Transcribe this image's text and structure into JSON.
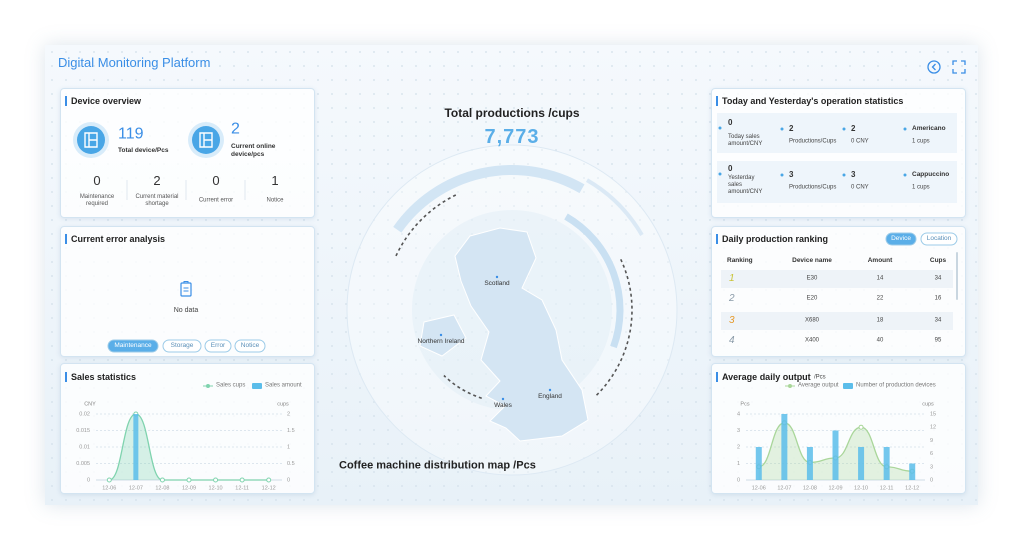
{
  "header": {
    "title": "Digital Monitoring Platform"
  },
  "device_overview": {
    "title": "Device overview",
    "total": {
      "value": 119,
      "label": "Total device/Pcs"
    },
    "online": {
      "value": 2,
      "label": "Current online device/pcs"
    },
    "stats": [
      {
        "value": 0,
        "label": "Maintenance required"
      },
      {
        "value": 2,
        "label": "Current material shortage"
      },
      {
        "value": 0,
        "label": "Current error"
      },
      {
        "value": 1,
        "label": "Notice"
      }
    ]
  },
  "error_analysis": {
    "title": "Current error analysis",
    "empty": "No data",
    "tabs": [
      "Maintenance",
      "Storage",
      "Error",
      "Notice"
    ]
  },
  "center": {
    "title": "Total productions /cups",
    "total": "7,773",
    "regions": [
      "Scotland",
      "Northern Ireland",
      "Wales",
      "England"
    ],
    "caption": "Coffee machine distribution map /Pcs"
  },
  "operation_statistics": {
    "title": "Today and Yesterday's operation statistics",
    "rows": [
      {
        "sales": 0,
        "sales_label": "Today sales amount/CNY",
        "productions": 2,
        "productions_label": "Productions/Cups",
        "amount": 2,
        "amount_label": "0 CNY",
        "product": "Americano",
        "product_label": "1 cups"
      },
      {
        "sales": 0,
        "sales_label": "Yesterday sales amount/CNY",
        "productions": 3,
        "productions_label": "Productions/Cups",
        "amount": 3,
        "amount_label": "0 CNY",
        "product": "Cappuccino",
        "product_label": "1 cups"
      }
    ]
  },
  "production_ranking": {
    "title": "Daily production ranking",
    "tabs": [
      "Device",
      "Location"
    ],
    "columns": [
      "Ranking",
      "Device name",
      "Amount",
      "Cups"
    ],
    "rows": [
      [
        1,
        "E30",
        14,
        34
      ],
      [
        2,
        "E20",
        22,
        16
      ],
      [
        3,
        "X680",
        18,
        34
      ],
      [
        4,
        "X400",
        40,
        95
      ]
    ]
  },
  "chart_data": [
    {
      "type": "bar",
      "title": "Sales statistics",
      "categories": [
        "12-06",
        "12-07",
        "12-08",
        "12-09",
        "12-10",
        "12-11",
        "12-12"
      ],
      "y_label": "CNY",
      "y2_label": "cups",
      "ylim": [
        0,
        0.02
      ],
      "yticks": [
        0,
        0.005,
        0.01,
        0.015,
        0.02
      ],
      "y2lim": [
        0,
        2
      ],
      "y2ticks": [
        0,
        0.5,
        1,
        1.5,
        2
      ],
      "grid": true,
      "series": [
        {
          "name": "Sales cups",
          "type": "line",
          "axis": "y2",
          "color": "#7fd3ae",
          "values": [
            0,
            2,
            0,
            0,
            0,
            0,
            0
          ]
        },
        {
          "name": "Sales amount",
          "type": "bar",
          "color": "#5bbdea",
          "values": [
            0,
            0.02,
            0,
            0,
            0,
            0,
            0
          ]
        }
      ]
    },
    {
      "type": "bar",
      "title": "Average daily output",
      "subtitle": "/Pcs",
      "categories": [
        "12-06",
        "12-07",
        "12-08",
        "12-09",
        "12-10",
        "12-11",
        "12-12"
      ],
      "y_label": "Pcs",
      "y2_label": "cups",
      "ylim": [
        0,
        4
      ],
      "yticks": [
        0,
        1,
        2,
        3,
        4
      ],
      "y2lim": [
        0,
        15
      ],
      "y2ticks": [
        0,
        3,
        6,
        9,
        12,
        15
      ],
      "grid": true,
      "series": [
        {
          "name": "Average output",
          "type": "line",
          "axis": "y2",
          "color": "#a9d69a",
          "values": [
            3,
            13,
            4,
            5,
            12,
            3,
            2
          ]
        },
        {
          "name": "Number of production devices",
          "type": "bar",
          "color": "#5bbdea",
          "values": [
            2,
            4,
            2,
            3,
            2,
            2,
            1
          ]
        }
      ]
    }
  ]
}
